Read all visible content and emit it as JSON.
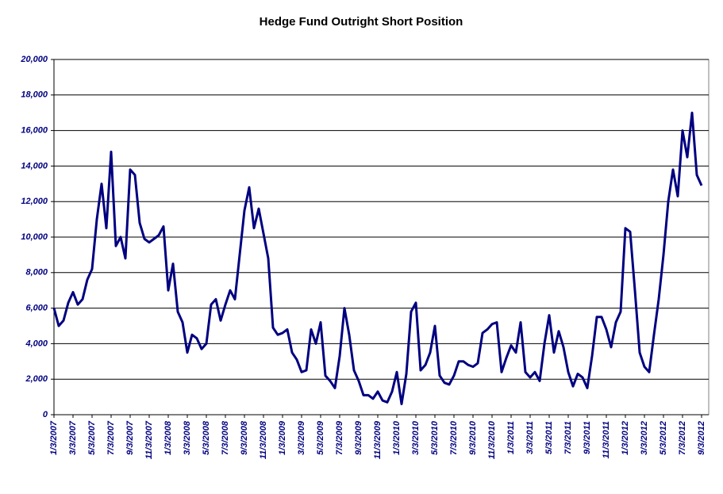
{
  "chart_data": {
    "type": "line",
    "title": "Hedge Fund Outright Short Position",
    "categories": [
      "1/3/2007",
      null,
      null,
      null,
      "3/3/2007",
      null,
      null,
      null,
      "5/3/2007",
      null,
      null,
      null,
      "7/3/2007",
      null,
      null,
      null,
      "9/3/2007",
      null,
      null,
      null,
      "11/3/2007",
      null,
      null,
      null,
      "1/3/2008",
      null,
      null,
      null,
      "3/3/2008",
      null,
      null,
      null,
      "5/3/2008",
      null,
      null,
      null,
      "7/3/2008",
      null,
      null,
      null,
      "9/3/2008",
      null,
      null,
      null,
      "11/3/2008",
      null,
      null,
      null,
      "1/3/2009",
      null,
      null,
      null,
      "3/3/2009",
      null,
      null,
      null,
      "5/3/2009",
      null,
      null,
      null,
      "7/3/2009",
      null,
      null,
      null,
      "9/3/2009",
      null,
      null,
      null,
      "11/3/2009",
      null,
      null,
      null,
      "1/3/2010",
      null,
      null,
      null,
      "3/3/2010",
      null,
      null,
      null,
      "5/3/2010",
      null,
      null,
      null,
      "7/3/2010",
      null,
      null,
      null,
      "9/3/2010",
      null,
      null,
      null,
      "11/3/2010",
      null,
      null,
      null,
      "1/3/2011",
      null,
      null,
      null,
      "3/3/2011",
      null,
      null,
      null,
      "5/3/2011",
      null,
      null,
      null,
      "7/3/2011",
      null,
      null,
      null,
      "9/3/2011",
      null,
      null,
      null,
      "11/3/2011",
      null,
      null,
      null,
      "1/3/2012",
      null,
      null,
      null,
      "3/3/2012",
      null,
      null,
      null,
      "5/3/2012",
      null,
      null,
      null,
      "7/3/2012",
      null,
      null,
      null,
      "9/3/2012"
    ],
    "values": [
      6000,
      5000,
      5300,
      6300,
      6900,
      6200,
      6500,
      7600,
      8200,
      11000,
      13000,
      10500,
      14800,
      9500,
      10000,
      8800,
      13800,
      13500,
      10800,
      9900,
      9700,
      9900,
      10100,
      10600,
      7000,
      8500,
      5800,
      5200,
      3500,
      4500,
      4300,
      3700,
      4000,
      6200,
      6500,
      5300,
      6200,
      7000,
      6500,
      9000,
      11500,
      12800,
      10500,
      11600,
      10200,
      8800,
      4900,
      4500,
      4600,
      4800,
      3500,
      3100,
      2400,
      2500,
      4800,
      4000,
      5200,
      2200,
      1900,
      1500,
      3300,
      6000,
      4500,
      2500,
      1900,
      1100,
      1100,
      900,
      1300,
      800,
      700,
      1300,
      2400,
      600,
      2300,
      5800,
      6300,
      2500,
      2800,
      3500,
      5000,
      2200,
      1800,
      1700,
      2200,
      3000,
      3000,
      2800,
      2700,
      2900,
      4600,
      4800,
      5100,
      5200,
      2400,
      3200,
      3900,
      3500,
      5200,
      2400,
      2100,
      2400,
      1900,
      4000,
      5600,
      3500,
      4700,
      3800,
      2400,
      1600,
      2300,
      2100,
      1500,
      3300,
      5500,
      5500,
      4800,
      3800,
      5200,
      5800,
      10500,
      10300,
      7000,
      3500,
      2700,
      2400,
      4500,
      6500,
      9000,
      12000,
      13800,
      12300,
      16000,
      14500,
      17000,
      13500,
      12900
    ],
    "color": "#000080",
    "ylim": [
      0,
      20000
    ],
    "yticks": [
      0,
      {
        "value": 2000,
        "label": "2,000"
      },
      {
        "value": 4000,
        "label": "4,000"
      },
      {
        "value": 6000,
        "label": "6,000"
      },
      {
        "value": 8000,
        "label": "8,000"
      },
      {
        "value": 10000,
        "label": "10,000"
      },
      {
        "value": 12000,
        "label": "12,000"
      },
      {
        "value": 14000,
        "label": "14,000"
      },
      {
        "value": 16000,
        "label": "16,000"
      },
      {
        "value": 18000,
        "label": "18,000"
      },
      {
        "value": 20000,
        "label": "20,000"
      }
    ],
    "grid": true
  }
}
